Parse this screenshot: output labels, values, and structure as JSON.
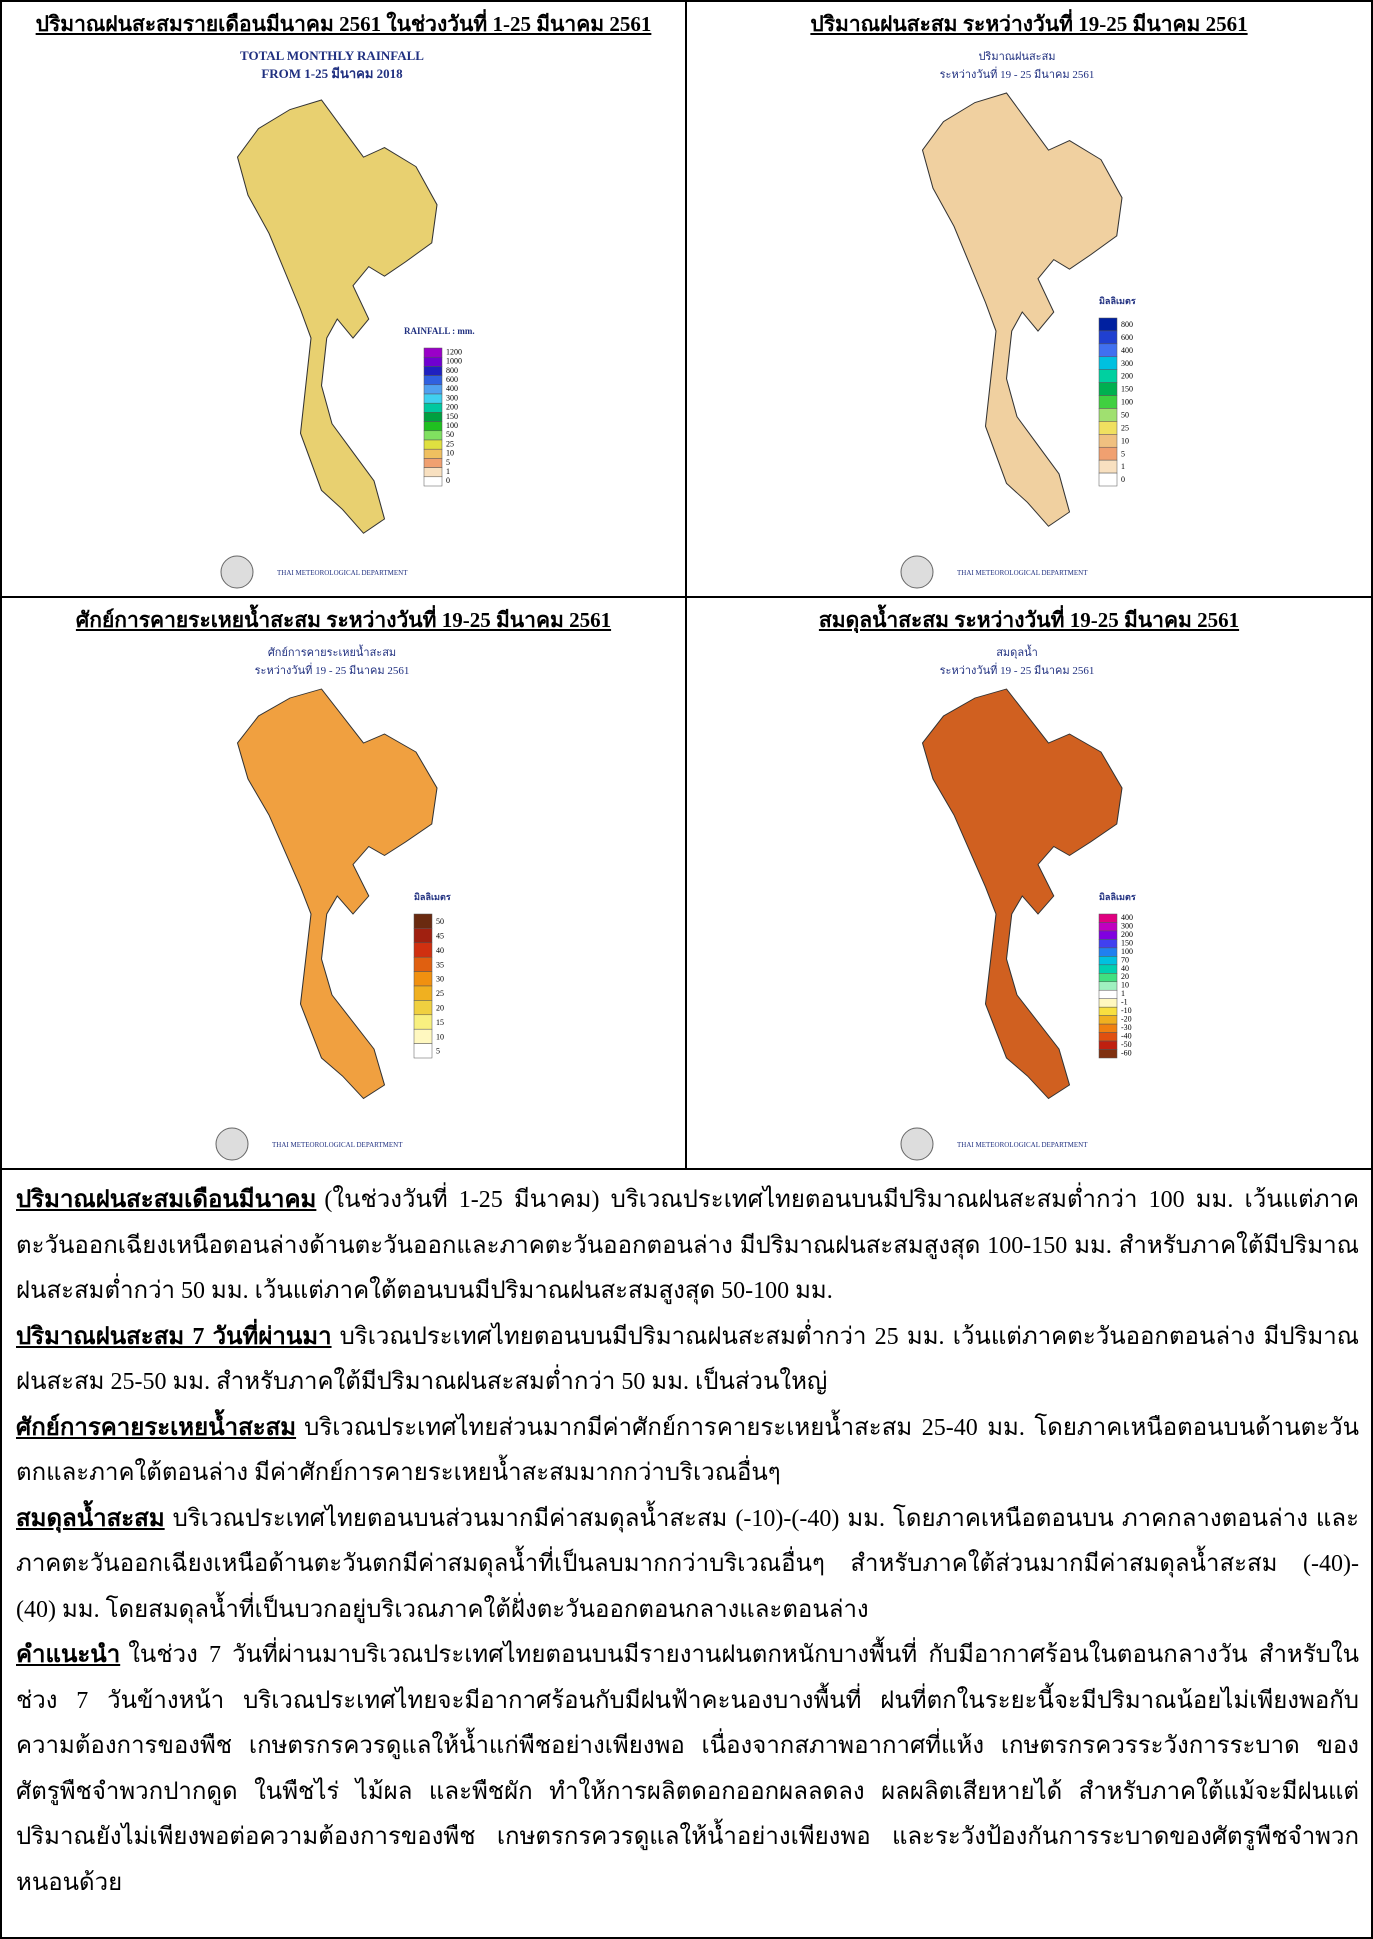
{
  "panels": [
    {
      "title": "ปริมาณฝนสะสมรายเดือนมีนาคม 2561 ในช่วงวันที่ 1-25 มีนาคม 2561",
      "map_title": [
        "TOTAL MONTHLY RAINFALL",
        "FROM 1-25 มีนาคม 2018"
      ],
      "legend_unit": "RAINFALL : mm.",
      "legend_labels": [
        "1200",
        "1000",
        "800",
        "600",
        "400",
        "300",
        "200",
        "150",
        "100",
        "50",
        "25",
        "10",
        "5",
        "1",
        "0"
      ],
      "credit": "THAI METEOROLOGICAL DEPARTMENT"
    },
    {
      "title": "ปริมาณฝนสะสม ระหว่างวันที่ 19-25 มีนาคม 2561",
      "map_title": [
        "ปริมาณฝนสะสม",
        "ระหว่างวันที่ 19 - 25 มีนาคม 2561"
      ],
      "legend_unit": "มิลลิเมตร",
      "legend_labels": [
        "800",
        "600",
        "400",
        "300",
        "200",
        "150",
        "100",
        "50",
        "25",
        "10",
        "5",
        "1",
        "0"
      ],
      "credit": "THAI METEOROLOGICAL DEPARTMENT"
    },
    {
      "title": "ศักย์การคายระเหยน้ำสะสม ระหว่างวันที่ 19-25 มีนาคม 2561",
      "map_title": [
        "ศักย์การคายระเหยน้ำสะสม",
        "ระหว่างวันที่ 19 - 25 มีนาคม 2561"
      ],
      "legend_unit": "มิลลิเมตร",
      "legend_labels": [
        "50",
        "45",
        "40",
        "35",
        "30",
        "25",
        "20",
        "15",
        "10",
        "5"
      ],
      "credit": "THAI METEOROLOGICAL DEPARTMENT"
    },
    {
      "title": "สมดุลน้ำสะสม ระหว่างวันที่ 19-25 มีนาคม 2561",
      "map_title": [
        "สมดุลน้ำ",
        "ระหว่างวันที่ 19 - 25 มีนาคม 2561"
      ],
      "legend_unit": "มิลลิเมตร",
      "legend_labels": [
        "400",
        "300",
        "200",
        "150",
        "100",
        "70",
        "40",
        "20",
        "10",
        "1",
        "-1",
        "-10",
        "-20",
        "-30",
        "-40",
        "-50",
        "-60"
      ],
      "credit": "THAI METEOROLOGICAL DEPARTMENT"
    }
  ],
  "paragraphs": [
    {
      "heading": "ปริมาณฝนสะสมเดือนมีนาคม",
      "body": "(ในช่วงวันที่ 1-25   มีนาคม) บริเวณประเทศไทยตอนบนมีปริมาณฝนสะสมต่ำกว่า 100 มม. เว้นแต่ภาคตะวันออกเฉียงเหนือตอนล่างด้านตะวันออกและภาคตะวันออกตอนล่าง มีปริมาณฝนสะสมสูงสุด 100-150 มม. สำหรับภาคใต้มีปริมาณฝนสะสมต่ำกว่า 50 มม. เว้นแต่ภาคใต้ตอนบนมีปริมาณฝนสะสมสูงสุด 50-100 มม."
    },
    {
      "heading": "ปริมาณฝนสะสม 7 วันที่ผ่านมา",
      "body": "บริเวณประเทศไทยตอนบนมีปริมาณฝนสะสมต่ำกว่า 25 มม. เว้นแต่ภาคตะวันออกตอนล่าง มีปริมาณฝนสะสม 25-50 มม. สำหรับภาคใต้มีปริมาณฝนสะสมต่ำกว่า 50 มม. เป็นส่วนใหญ่"
    },
    {
      "heading": "ศักย์การคายระเหยน้ำสะสม",
      "body": "บริเวณประเทศไทยส่วนมากมีค่าศักย์การคายระเหยน้ำสะสม 25-40 มม. โดยภาคเหนือตอนบนด้านตะวันตกและภาคใต้ตอนล่าง มีค่าศักย์การคายระเหยน้ำสะสมมากกว่าบริเวณอื่นๆ"
    },
    {
      "heading": "สมดุลน้ำสะสม",
      "body": "บริเวณประเทศไทยตอนบนส่วนมากมีค่าสมดุลน้ำสะสม (-10)-(-40) มม. โดยภาคเหนือตอนบน ภาคกลางตอนล่าง และภาคตะวันออกเฉียงเหนือด้านตะวันตกมีค่าสมดุลน้ำที่เป็นลบมากกว่าบริเวณอื่นๆ สำหรับภาคใต้ส่วนมากมีค่าสมดุลน้ำสะสม (-40)-(40) มม. โดยสมดุลน้ำที่เป็นบวกอยู่บริเวณภาคใต้ฝั่งตะวันออกตอนกลางและตอนล่าง"
    },
    {
      "heading": "คำแนะนำ",
      "body": "ในช่วง 7 วันที่ผ่านมาบริเวณประเทศไทยตอนบนมีรายงานฝนตกหนักบางพื้นที่ กับมีอากาศร้อนในตอนกลางวัน สำหรับในช่วง 7 วันข้างหน้า บริเวณประเทศไทยจะมีอากาศร้อนกับมีฝนฟ้าคะนองบางพื้นที่ ฝนที่ตกในระยะนี้จะมีปริมาณน้อยไม่เพียงพอกับความต้องการของพืช เกษตรกรควรดูแลให้น้ำแก่พืชอย่างเพียงพอ เนื่องจากสภาพอากาศที่แห้ง เกษตรกรควรระวังการระบาด ของศัตรูพืชจำพวกปากดูด ในพืชไร่ ไม้ผล และพืชผัก ทำให้การผลิตดอกออกผลลดลง ผลผลิตเสียหายได้ สำหรับภาคใต้แม้จะมีฝนแต่ปริมาณยังไม่เพียงพอต่อความต้องการของพืช เกษตรกรควรดูแลให้น้ำอย่างเพียงพอ และระวังป้องกันการระบาดของศัตรูพืชจำพวกหนอนด้วย"
    }
  ]
}
